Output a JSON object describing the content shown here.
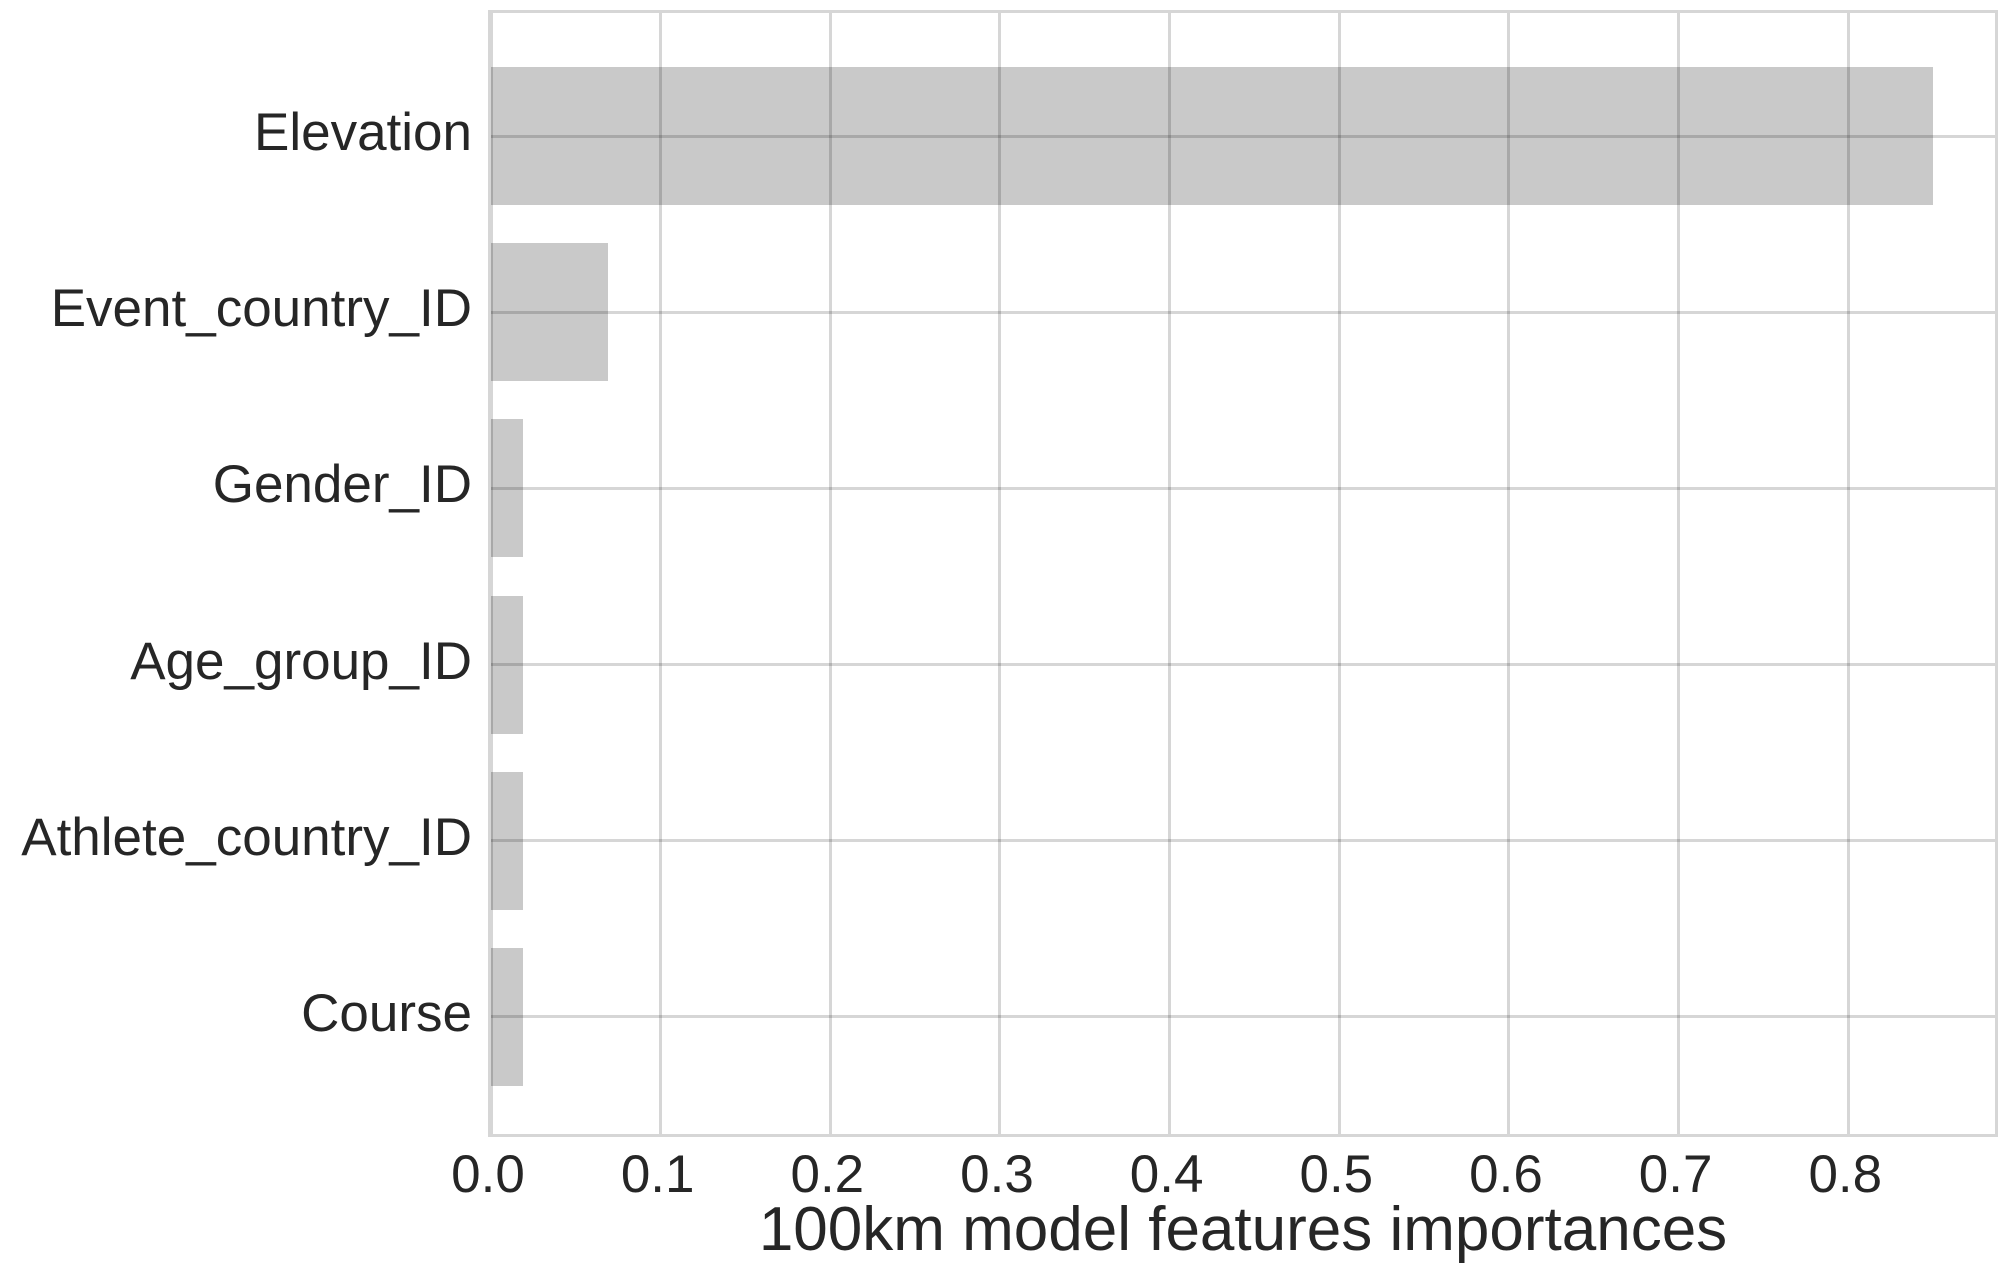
{
  "chart_data": {
    "type": "bar",
    "orientation": "horizontal",
    "title": "",
    "xlabel": "100km model features importances",
    "ylabel": "",
    "categories": [
      "Elevation",
      "Event_country_ID",
      "Gender_ID",
      "Age_group_ID",
      "Athlete_country_ID",
      "Course"
    ],
    "values": [
      0.85,
      0.069,
      0.019,
      0.019,
      0.019,
      0.019
    ],
    "x_ticks": [
      0.0,
      0.1,
      0.2,
      0.3,
      0.4,
      0.5,
      0.6,
      0.7,
      0.8
    ],
    "x_tick_labels": [
      "0.0",
      "0.1",
      "0.2",
      "0.3",
      "0.4",
      "0.5",
      "0.6",
      "0.7",
      "0.8"
    ],
    "xlim": [
      0,
      0.89
    ],
    "grid": true,
    "legend": false,
    "bar_color": "#c9c9c9",
    "grid_color": "rgba(0,0,0,0.16)",
    "text_color": "#262626",
    "background_color": "#ffffff"
  }
}
